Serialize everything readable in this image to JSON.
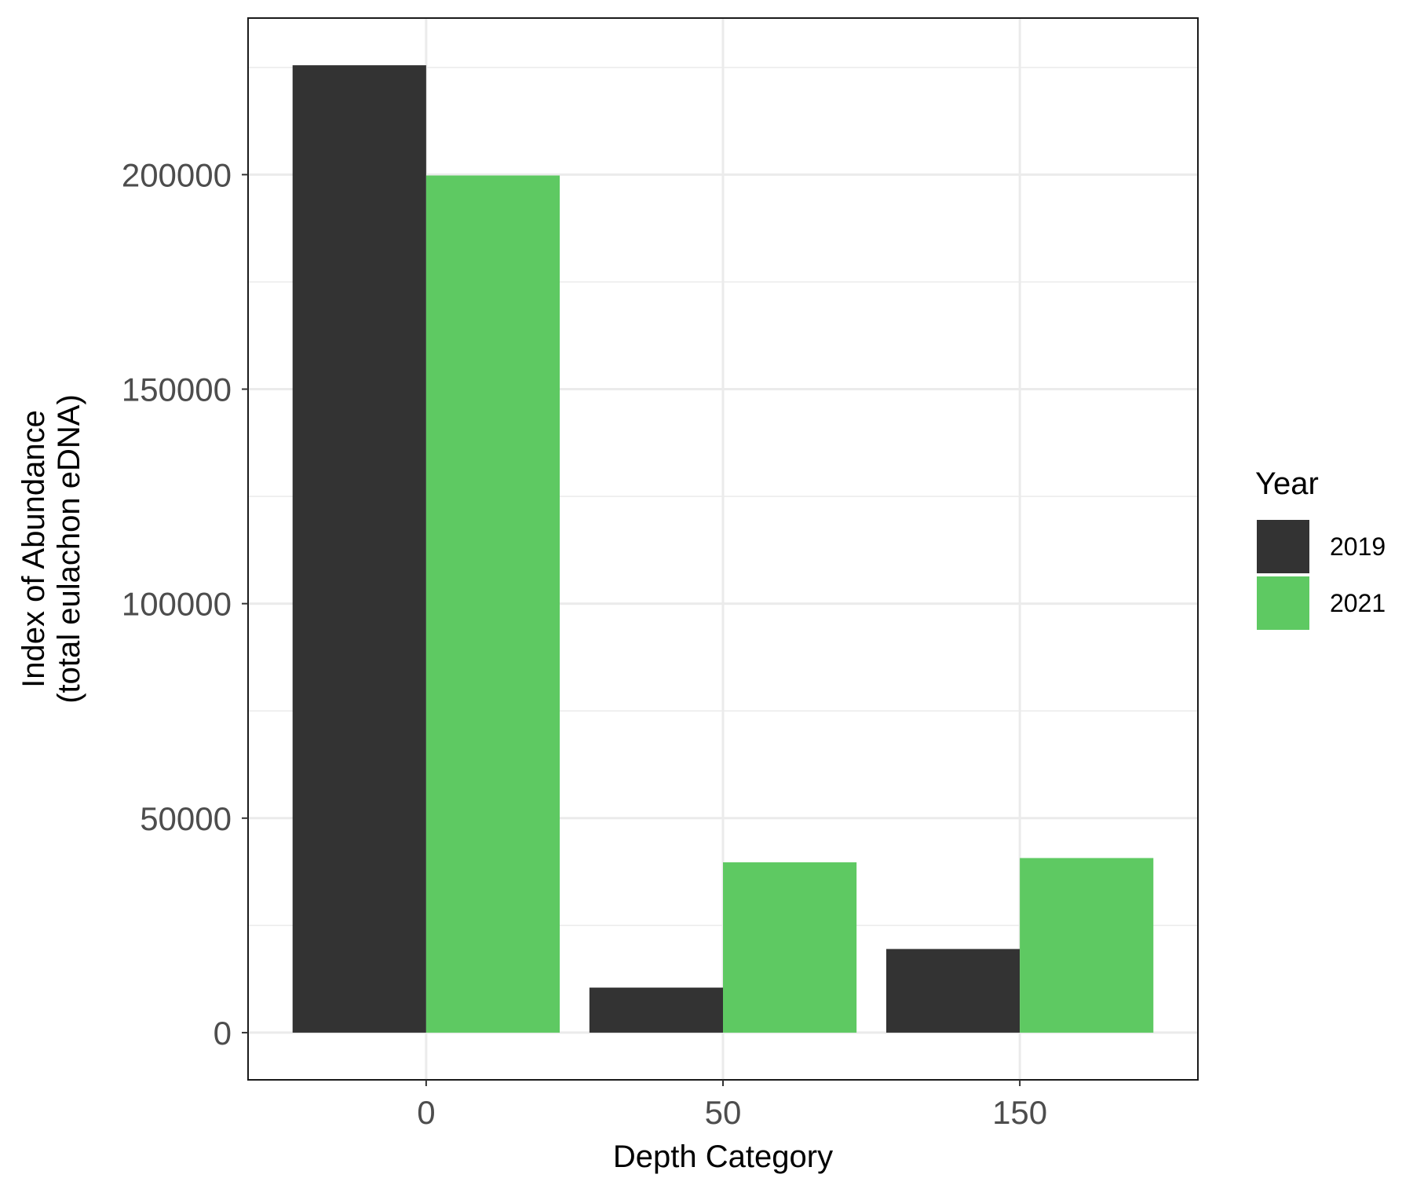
{
  "chart_data": {
    "type": "bar",
    "xlabel": "Depth Category",
    "ylabel_lines": [
      "Index of Abundance",
      "(total eulachon eDNA)"
    ],
    "categories": [
      "0",
      "50",
      "150"
    ],
    "series": [
      {
        "name": "2019",
        "color": "#333333",
        "values": [
          225500,
          10500,
          19500
        ]
      },
      {
        "name": "2021",
        "color": "#5ec962",
        "values": [
          199800,
          39700,
          40700
        ]
      }
    ],
    "ylim": [
      -11000,
      236500
    ],
    "y_ticks": [
      0,
      50000,
      100000,
      150000,
      200000
    ],
    "y_tick_labels": [
      "0",
      "50000",
      "100000",
      "150000",
      "200000"
    ],
    "y_minor_ticks": [
      25000,
      75000,
      125000,
      175000,
      225000
    ],
    "grid": true,
    "legend": {
      "title": "Year",
      "position": "right"
    }
  }
}
